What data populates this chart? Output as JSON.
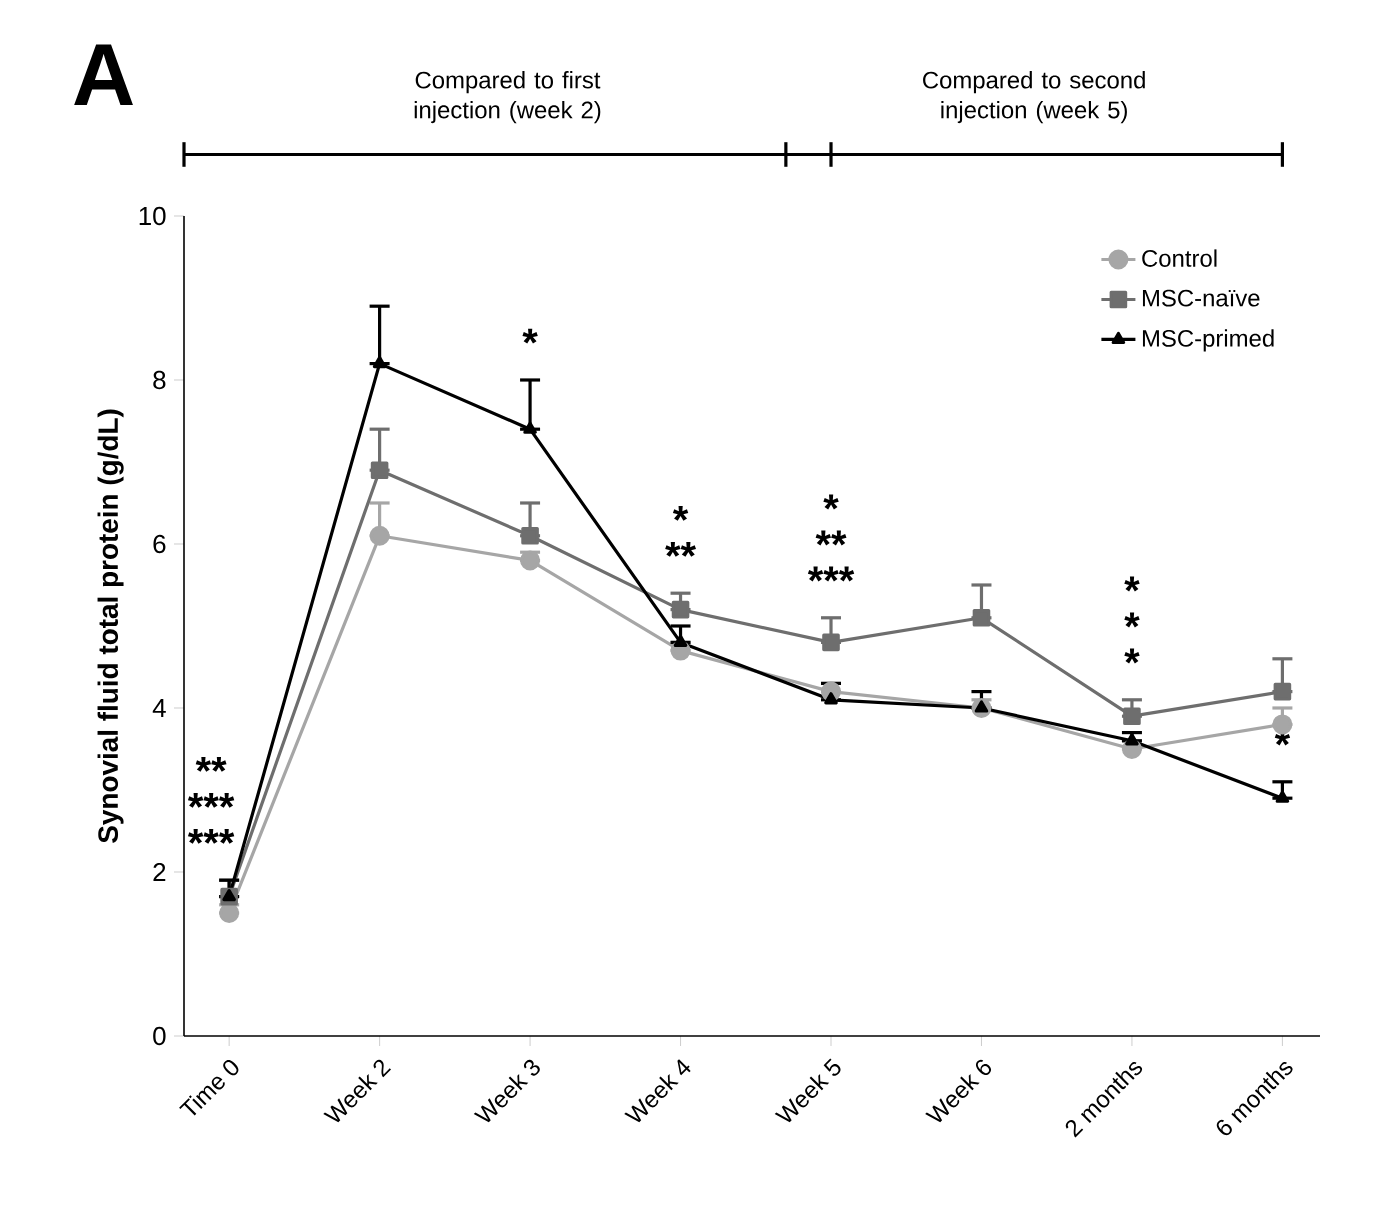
{
  "chart_data": {
    "type": "line",
    "ylabel": "Synovial fluid total protein (g/dL)",
    "categories": [
      "Time 0",
      "Week 2",
      "Week 3",
      "Week 4",
      "Week 5",
      "Week 6",
      "2 months",
      "6 months"
    ],
    "series": [
      {
        "name": "Control",
        "color": "#a6a6a6",
        "marker": "circle",
        "values": [
          1.5,
          6.1,
          5.8,
          4.7,
          4.2,
          4.0,
          3.5,
          3.8
        ],
        "errors": [
          [
            1.5,
            1.6
          ],
          [
            6.1,
            6.5
          ],
          [
            5.8,
            5.9
          ],
          [
            4.7,
            4.8
          ],
          [
            4.2,
            4.3
          ],
          [
            4.0,
            4.1
          ],
          [
            3.5,
            3.6
          ],
          [
            3.8,
            4.0
          ]
        ]
      },
      {
        "name": "MSC-naïve",
        "color": "#6e6e6e",
        "marker": "square",
        "values": [
          1.7,
          6.9,
          6.1,
          5.2,
          4.8,
          5.1,
          3.9,
          4.2
        ],
        "errors": [
          [
            1.7,
            1.9
          ],
          [
            6.9,
            7.4
          ],
          [
            6.1,
            6.5
          ],
          [
            5.2,
            5.4
          ],
          [
            4.8,
            5.1
          ],
          [
            5.1,
            5.5
          ],
          [
            3.9,
            4.1
          ],
          [
            4.2,
            4.6
          ]
        ]
      },
      {
        "name": "MSC-primed",
        "color": "#000000",
        "marker": "triangle",
        "values": [
          1.7,
          8.2,
          7.4,
          4.8,
          4.1,
          4.0,
          3.6,
          2.9
        ],
        "errors": [
          [
            1.7,
            1.9
          ],
          [
            8.2,
            8.9
          ],
          [
            7.4,
            8.0
          ],
          [
            4.8,
            5.0
          ],
          [
            4.1,
            4.3
          ],
          [
            4.0,
            4.2
          ],
          [
            3.6,
            3.7
          ],
          [
            2.9,
            3.1
          ]
        ]
      }
    ],
    "ylim": [
      0,
      10
    ],
    "yticks": [
      0,
      2,
      4,
      6,
      8,
      10
    ],
    "legend": "top right",
    "annotations": [
      "A",
      "Compared to first injection (week 2)",
      "Compared to second injection (week 5)",
      {
        "text": "**",
        "x": "Time 0",
        "y": 1.9
      },
      {
        "text": "***",
        "x": "Time 0",
        "y": 1.9
      },
      {
        "text": "***",
        "x": "Time 0",
        "y": 1.9
      },
      {
        "text": "*",
        "x": "Week 3",
        "y": 8.0
      },
      {
        "text": "*",
        "x": "Week 4",
        "y": 5.4
      },
      {
        "text": "**",
        "x": "Week 4",
        "y": 5.4
      },
      {
        "text": "*",
        "x": "Week 5",
        "y": 5.1
      },
      {
        "text": "**",
        "x": "Week 5",
        "y": 5.1
      },
      {
        "text": "***",
        "x": "Week 5",
        "y": 5.1
      },
      {
        "text": "*",
        "x": "2 months",
        "y": 4.1
      },
      {
        "text": "*",
        "x": "2 months",
        "y": 4.1
      },
      {
        "text": "*",
        "x": "2 months",
        "y": 4.1
      },
      {
        "text": "*",
        "x": "6 months",
        "y": 3.1
      }
    ]
  }
}
